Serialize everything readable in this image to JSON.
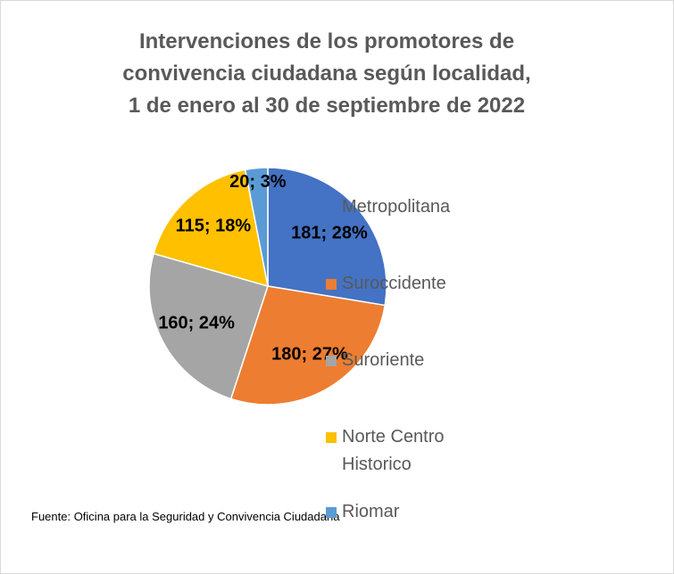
{
  "chart_data": {
    "type": "pie",
    "title": "Intervenciones de los promotores de convivencia ciudadana según localidad, 1 de enero al 30 de septiembre de 2022",
    "categories": [
      "Metropolitana",
      "Suroccidente",
      "Suroriente",
      "Norte Centro Historico",
      "Riomar"
    ],
    "values": [
      181,
      180,
      160,
      115,
      20
    ],
    "value_labels": [
      "181; 28%",
      "180; 27%",
      "160; 24%",
      "115; 18%",
      "20; 3%"
    ],
    "colors": [
      "#4472c4",
      "#ed7d31",
      "#a5a5a5",
      "#ffc000",
      "#5b9bd5"
    ],
    "source": "Fuente: Oficina para la Seguridad y Convivencia Ciudadana",
    "legend": "right"
  }
}
